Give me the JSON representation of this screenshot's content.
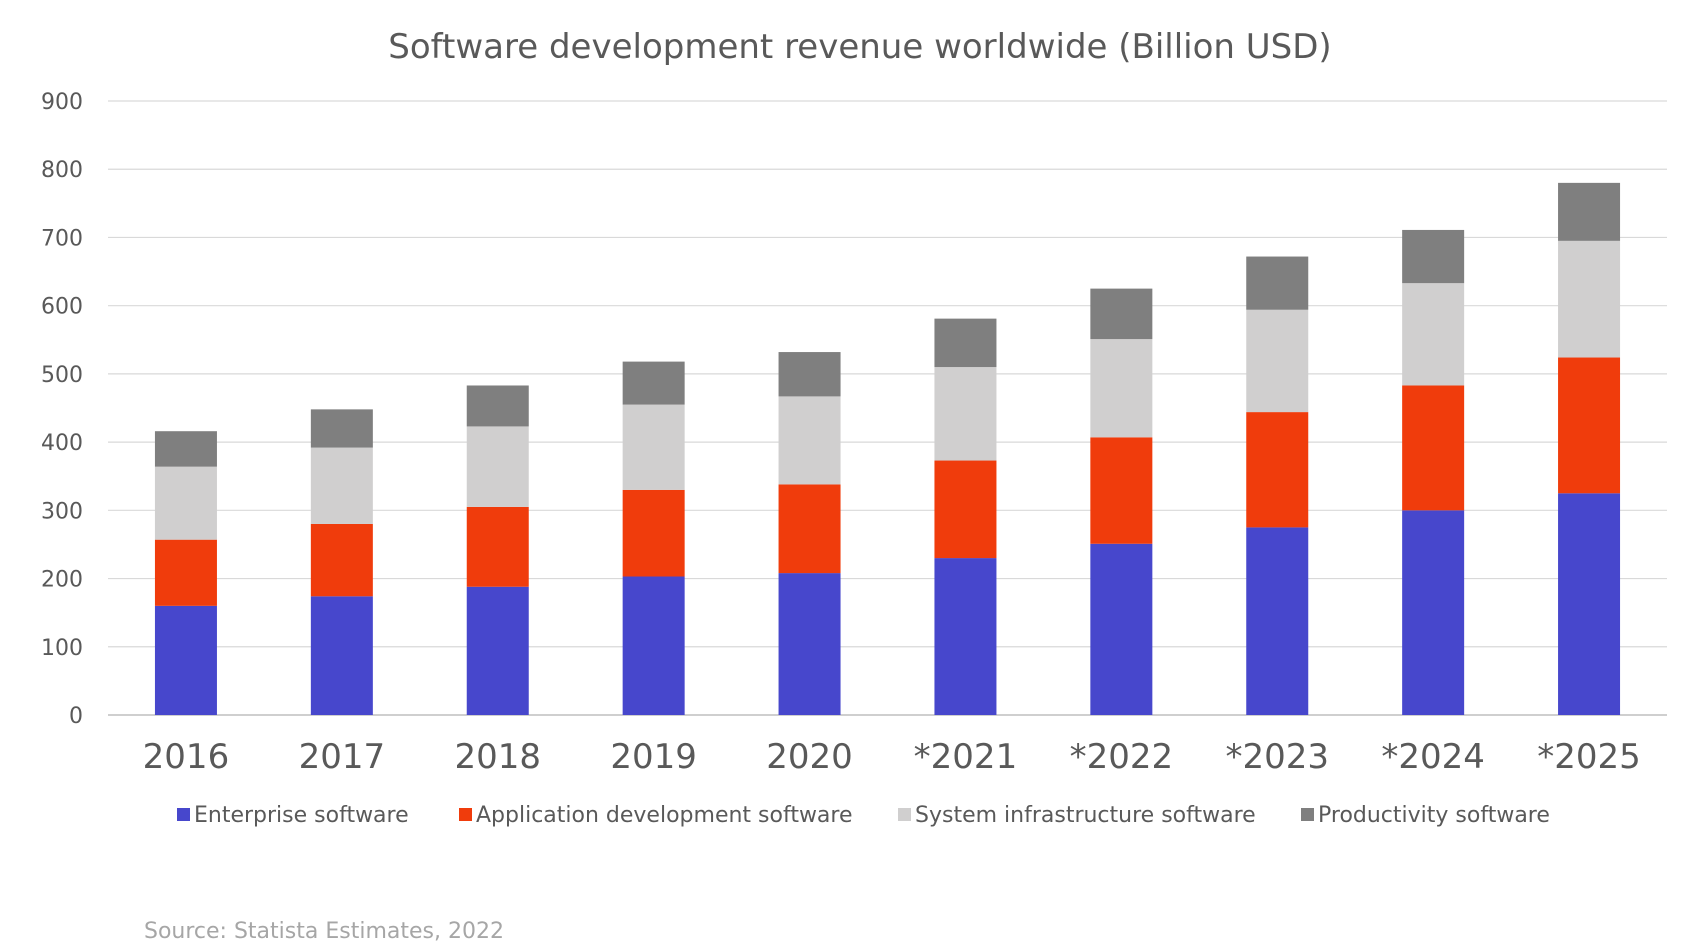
{
  "chart_data": {
    "type": "bar",
    "stacked": true,
    "title": "Software development revenue worldwide (Billion USD)",
    "xlabel": "",
    "ylabel": "",
    "ylim": [
      0,
      900
    ],
    "yticks": [
      0,
      100,
      200,
      300,
      400,
      500,
      600,
      700,
      800,
      900
    ],
    "grid": true,
    "legend_position": "bottom",
    "categories": [
      "2016",
      "2017",
      "2018",
      "2019",
      "2020",
      "*2021",
      "*2022",
      "*2023",
      "*2024",
      "*2025"
    ],
    "series": [
      {
        "name": "Enterprise software",
        "color": "#4747cc",
        "values": [
          160,
          174,
          188,
          203,
          208,
          230,
          251,
          275,
          300,
          325
        ]
      },
      {
        "name": "Application development software",
        "color": "#f03c0c",
        "values": [
          97,
          106,
          117,
          127,
          130,
          143,
          156,
          169,
          183,
          199
        ]
      },
      {
        "name": "System infrastructure software",
        "color": "#d0cfcf",
        "values": [
          107,
          112,
          118,
          125,
          129,
          137,
          144,
          150,
          150,
          171
        ]
      },
      {
        "name": "Productivity software",
        "color": "#7f7f7f",
        "values": [
          52,
          56,
          60,
          63,
          65,
          71,
          74,
          78,
          78,
          85
        ]
      }
    ]
  },
  "source": "Source: Statista Estimates, 2022",
  "colors": {
    "gridline": "#d9d9d9",
    "axis": "#bfbfbf",
    "text": "#595959",
    "source_text": "#a6a6a6"
  }
}
